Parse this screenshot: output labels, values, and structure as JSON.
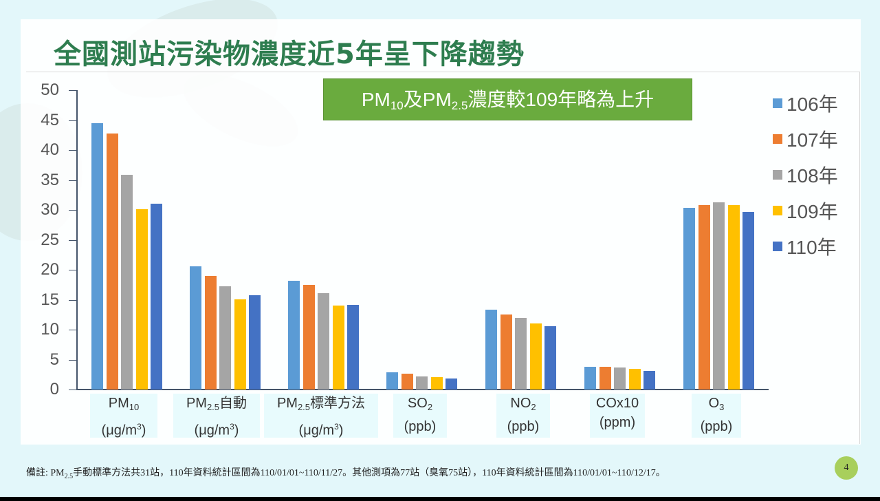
{
  "slide": {
    "title": "全國測站污染物濃度近5年呈下降趨勢",
    "callout": {
      "prefix": "PM",
      "sub1": "10",
      "mid": "及PM",
      "sub2": "2.5",
      "suffix": "濃度較109年略為上升"
    },
    "footnote": {
      "prefix": "備註: PM",
      "sub": "2.5",
      "suffix": "手動標準方法共31站，110年資料統計區間為110/01/01~110/11/27。其他測項為77站（臭氧75站），110年資料統計區間為110/01/01~110/12/17。"
    },
    "page_number": "4"
  },
  "colors": {
    "106": "#5b9bd5",
    "107": "#ed7d31",
    "108": "#a5a5a5",
    "109": "#ffc000",
    "110": "#4472c4",
    "title_green": "#2e7d4f",
    "callout_green": "#6aab3e"
  },
  "chart_data": {
    "type": "bar",
    "title": "全國測站污染物濃度近5年呈下降趨勢",
    "annotation": "PM10及PM2.5濃度較109年略為上升",
    "xlabel": "",
    "ylabel": "",
    "ylim": [
      0,
      50
    ],
    "yticks": [
      0,
      5,
      10,
      15,
      20,
      25,
      30,
      35,
      40,
      45,
      50
    ],
    "grid": false,
    "legend_position": "right",
    "categories": [
      "PM10 (μg/m3)",
      "PM2.5自動 (μg/m3)",
      "PM2.5標準方法 (μg/m3)",
      "SO2 (ppb)",
      "NO2 (ppb)",
      "COx10 (ppm)",
      "O3 (ppb)"
    ],
    "category_labels": [
      {
        "main": "PM",
        "sub": "10",
        "tail": "",
        "unit": "(μg/m",
        "unit_sup": "3",
        "unit_end": ")"
      },
      {
        "main": "PM",
        "sub": "2.5",
        "tail": "自動",
        "unit": "(μg/m",
        "unit_sup": "3",
        "unit_end": ")"
      },
      {
        "main": "PM",
        "sub": "2.5",
        "tail": "標準方法",
        "unit": "(μg/m",
        "unit_sup": "3",
        "unit_end": ")"
      },
      {
        "main": "SO",
        "sub": "2",
        "tail": "",
        "unit": "(ppb",
        "unit_sup": "",
        "unit_end": ")"
      },
      {
        "main": "NO",
        "sub": "2",
        "tail": "",
        "unit": "(ppb",
        "unit_sup": "",
        "unit_end": ")"
      },
      {
        "main": "COx10",
        "sub": "",
        "tail": "",
        "unit": "(ppm",
        "unit_sup": "",
        "unit_end": ")"
      },
      {
        "main": "O",
        "sub": "3",
        "tail": "",
        "unit": "(ppb",
        "unit_sup": "",
        "unit_end": ")"
      }
    ],
    "series": [
      {
        "name": "106年",
        "key": "106",
        "values": [
          44.5,
          20.6,
          18.2,
          2.9,
          13.3,
          3.8,
          30.3
        ]
      },
      {
        "name": "107年",
        "key": "107",
        "values": [
          42.8,
          19.0,
          17.5,
          2.6,
          12.5,
          3.8,
          30.8
        ]
      },
      {
        "name": "108年",
        "key": "108",
        "values": [
          35.9,
          17.2,
          16.1,
          2.2,
          12.0,
          3.7,
          31.3
        ]
      },
      {
        "name": "109年",
        "key": "109",
        "values": [
          30.1,
          15.1,
          14.0,
          2.1,
          11.0,
          3.4,
          30.8
        ]
      },
      {
        "name": "110年",
        "key": "110",
        "values": [
          31.0,
          15.7,
          14.1,
          1.8,
          10.6,
          3.1,
          29.7
        ]
      }
    ]
  }
}
